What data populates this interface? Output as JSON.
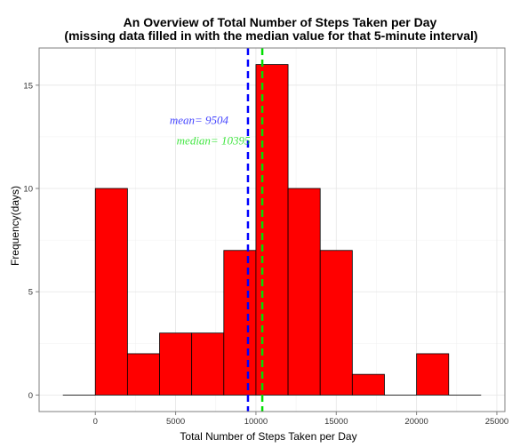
{
  "chart_data": {
    "type": "histogram",
    "title": "An Overview of Total Number of Steps Taken per Day",
    "subtitle": "(missing data filled in with the median value for that 5-minute interval)",
    "xlabel": "Total Number of Steps Taken per Day",
    "ylabel": "Frequency(days)",
    "xlim": [
      -3500,
      25500
    ],
    "ylim": [
      -0.8,
      16.8
    ],
    "xticks": [
      0,
      5000,
      10000,
      15000,
      20000,
      25000
    ],
    "yticks": [
      0,
      5,
      10,
      15
    ],
    "grid": true,
    "bin_width": 2000,
    "bins": [
      {
        "x0": -2000,
        "x1": 0,
        "count": 0
      },
      {
        "x0": 0,
        "x1": 2000,
        "count": 10
      },
      {
        "x0": 2000,
        "x1": 4000,
        "count": 2
      },
      {
        "x0": 4000,
        "x1": 6000,
        "count": 3
      },
      {
        "x0": 6000,
        "x1": 8000,
        "count": 3
      },
      {
        "x0": 8000,
        "x1": 10000,
        "count": 7
      },
      {
        "x0": 10000,
        "x1": 12000,
        "count": 16
      },
      {
        "x0": 12000,
        "x1": 14000,
        "count": 10
      },
      {
        "x0": 14000,
        "x1": 16000,
        "count": 7
      },
      {
        "x0": 16000,
        "x1": 18000,
        "count": 1
      },
      {
        "x0": 18000,
        "x1": 20000,
        "count": 0
      },
      {
        "x0": 20000,
        "x1": 22000,
        "count": 2
      },
      {
        "x0": 22000,
        "x1": 24000,
        "count": 0
      }
    ],
    "bar_color": "#ff0000",
    "reference_lines": [
      {
        "name": "mean",
        "value": 9504,
        "label": "mean= 9504",
        "color": "#0000ff",
        "label_y": 13.3
      },
      {
        "name": "median",
        "value": 10395,
        "label": "median= 10395",
        "color": "#00dd00",
        "label_y": 12.3
      }
    ]
  }
}
